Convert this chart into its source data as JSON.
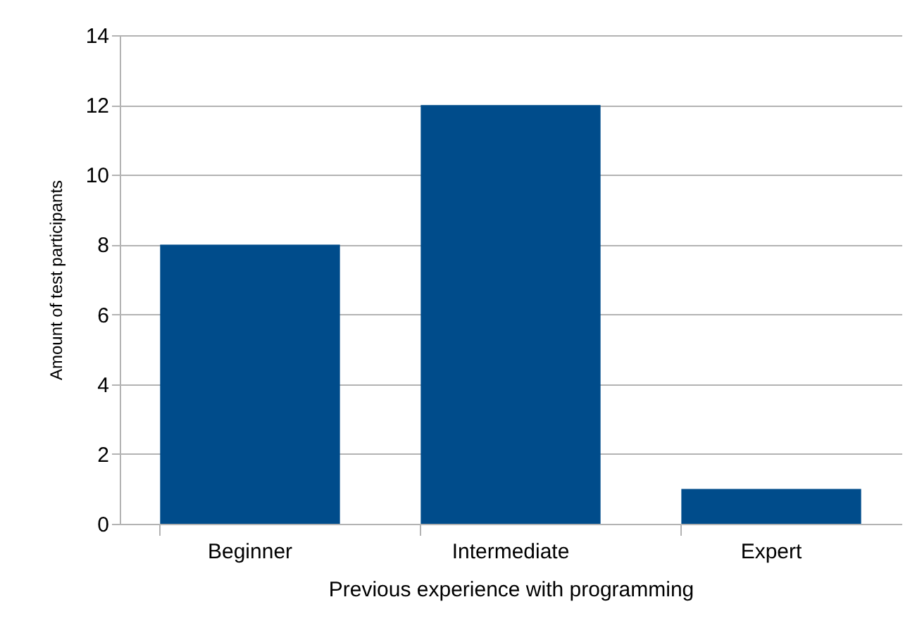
{
  "chart_data": {
    "type": "bar",
    "xlabel": "Previous experience with programming",
    "ylabel": "Amount of test participants",
    "categories": [
      "Beginner",
      "Intermediate",
      "Expert"
    ],
    "values": [
      8,
      12,
      1
    ],
    "color": "#004c8b",
    "ylim": [
      0,
      14
    ],
    "yticks": [
      0,
      2,
      4,
      6,
      8,
      10,
      12,
      14
    ],
    "grid": "y"
  }
}
